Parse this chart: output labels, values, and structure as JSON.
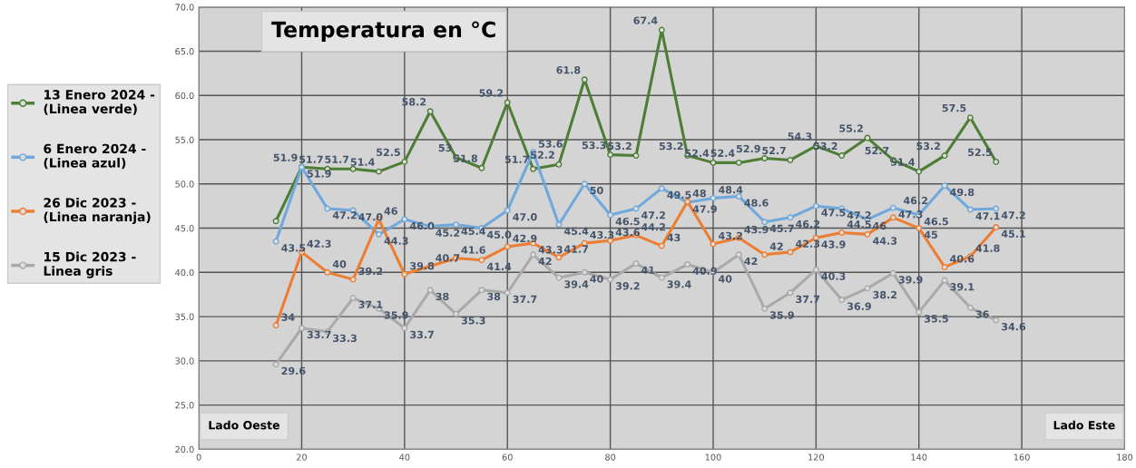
{
  "chart_data": {
    "type": "line",
    "title": "Temperatura en °C",
    "x": [
      15,
      20,
      25,
      30,
      35,
      40,
      45,
      50,
      55,
      60,
      65,
      70,
      75,
      80,
      85,
      90,
      95,
      100,
      105,
      110,
      115,
      120,
      125,
      130,
      135,
      140,
      145,
      150,
      155
    ],
    "series": [
      {
        "name": "13 Enero 2024 -\n(Linea verde)",
        "color": "#4e7d35",
        "values": [
          45.8,
          51.9,
          51.7,
          51.7,
          51.4,
          52.5,
          58.2,
          53,
          51.8,
          59.2,
          51.7,
          52.2,
          61.8,
          53.3,
          53.2,
          67.4,
          53.2,
          52.4,
          52.4,
          52.9,
          52.7,
          54.3,
          53.2,
          55.2,
          52.7,
          51.4,
          53.2,
          57.5,
          52.5
        ],
        "value_labels": [
          null,
          "51.9",
          "51.7",
          "51.7",
          "51.4",
          "52.5",
          "58.2",
          "53",
          "51.8",
          "59.2",
          "51.7",
          "52.2",
          "61.8",
          "53.3",
          "53.2",
          "67.4",
          "53.2",
          "52.4",
          "52.4",
          "52.9",
          "52.7",
          "54.3",
          "53.2",
          "55.2",
          "52.7",
          "51.4",
          "53.2",
          "57.5",
          "52.5"
        ]
      },
      {
        "name": "6 Enero 2024 -\n(Linea azul)",
        "color": "#6fa8dc",
        "values": [
          43.5,
          51.9,
          47.2,
          47.0,
          44.3,
          46.0,
          45.2,
          45.4,
          45.0,
          47.0,
          53.6,
          45.4,
          50,
          46.5,
          47.2,
          49.5,
          47.9,
          48.4,
          48.6,
          45.7,
          46.2,
          47.5,
          47.2,
          46,
          47.3,
          46.5,
          49.8,
          47.1,
          47.2
        ],
        "value_labels": [
          "43.5",
          "51.9",
          "47.2",
          "47.0",
          "44.3",
          "46.0",
          "45.2",
          "45.4",
          "45.0",
          "47.0",
          "53.6",
          "45.4",
          "50",
          "46.5",
          "47.2",
          "49.5",
          "47.9",
          "48.4",
          "48.6",
          "45.7",
          "46.2",
          "47.5",
          "47.2",
          "46",
          "47.3",
          "46.5",
          "49.8",
          "47.1",
          "47.2"
        ]
      },
      {
        "name": "26 Dic 2023 -\n(Linea naranja)",
        "color": "#ed7d31",
        "values": [
          34,
          42.3,
          40,
          39.2,
          46,
          39.8,
          40.7,
          41.6,
          41.4,
          42.9,
          43.3,
          41.7,
          43.3,
          43.6,
          44.2,
          43,
          48,
          43.2,
          43.9,
          42,
          42.3,
          43.9,
          44.5,
          44.3,
          46.2,
          45,
          40.6,
          41.8,
          45.1
        ],
        "value_labels": [
          "34",
          "42.3",
          "40",
          "39.2",
          "46",
          "39.8",
          "40.7",
          "41.6",
          "41.4",
          "42.9",
          "43.3",
          "41.7",
          "43.3",
          "43.6",
          "44.2",
          "43",
          "48",
          "43.2",
          "43.9",
          "42",
          "42.3",
          "43.9",
          "44.5",
          "44.3",
          "46.2",
          "45",
          "40.6",
          "41.8",
          "45.1"
        ]
      },
      {
        "name": "15 Dic 2023 -\nLinea gris",
        "color": "#a9a9a9",
        "values": [
          29.6,
          33.7,
          33.3,
          37.1,
          35.9,
          33.7,
          38,
          35.3,
          38,
          37.7,
          42,
          39.4,
          40,
          39.2,
          41,
          39.4,
          40.9,
          40,
          42,
          35.9,
          37.7,
          40.3,
          36.9,
          38.2,
          39.9,
          35.5,
          39.1,
          36,
          34.6
        ],
        "value_labels": [
          "29.6",
          "33.7",
          "33.3",
          "37.1",
          "35.9",
          "33.7",
          "38",
          "35.3",
          "38",
          "37.7",
          "42",
          "39.4",
          "40",
          "39.2",
          "41",
          "39.4",
          "40.9",
          "40",
          "42",
          "35.9",
          "37.7",
          "40.3",
          "36.9",
          "38.2",
          "39.9",
          "35.5",
          "39.1",
          "36",
          "34.6"
        ]
      }
    ],
    "annotations": [
      "Lado Oeste",
      "Lado Este"
    ],
    "xlim": [
      0,
      180
    ],
    "xticks": [
      0,
      20,
      40,
      60,
      80,
      100,
      120,
      140,
      160,
      180
    ],
    "ylim": [
      20,
      70
    ],
    "yticks": [
      {
        "value": 20,
        "label": "20.0"
      },
      {
        "value": 25,
        "label": "25.0"
      },
      {
        "value": 30,
        "label": "30.0"
      },
      {
        "value": 35,
        "label": "35.0"
      },
      {
        "value": 40,
        "label": "40.0"
      },
      {
        "value": 45,
        "label": "45.0"
      },
      {
        "value": 50,
        "label": "50.0"
      },
      {
        "value": 55,
        "label": "55.0"
      },
      {
        "value": 60,
        "label": "60.0"
      },
      {
        "value": 65,
        "label": "65.0"
      },
      {
        "value": 70,
        "label": "70.0"
      }
    ],
    "grid": true,
    "legend": "left",
    "marker": "circle",
    "line_style": "solid"
  }
}
